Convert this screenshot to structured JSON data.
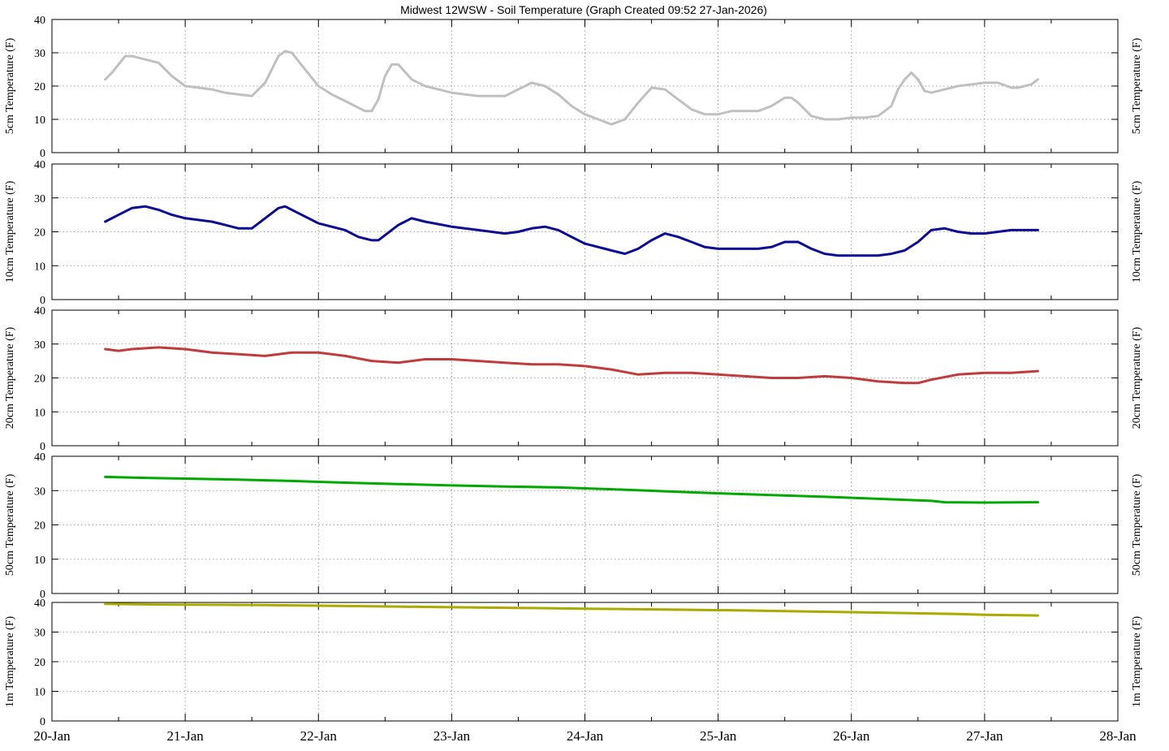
{
  "title": "Midwest 12WSW - Soil Temperature (Graph Created 09:52 27-Jan-2026)",
  "chart_data": [
    {
      "type": "line",
      "ylabel": "5cm Temperature (F)",
      "ylim": [
        0,
        40
      ],
      "yticks": [
        "0",
        "10",
        "20",
        "30",
        "40"
      ],
      "grid": true,
      "series": [
        {
          "color": "#c0c0c0",
          "x": [
            20.4,
            20.45,
            20.55,
            20.6,
            20.7,
            20.8,
            20.9,
            21.0,
            21.1,
            21.2,
            21.3,
            21.4,
            21.5,
            21.6,
            21.7,
            21.75,
            21.8,
            21.9,
            22.0,
            22.1,
            22.2,
            22.3,
            22.35,
            22.4,
            22.45,
            22.5,
            22.55,
            22.6,
            22.7,
            22.8,
            22.9,
            23.0,
            23.2,
            23.4,
            23.5,
            23.6,
            23.7,
            23.8,
            23.9,
            24.0,
            24.1,
            24.2,
            24.3,
            24.4,
            24.5,
            24.6,
            24.7,
            24.8,
            24.9,
            25.0,
            25.1,
            25.2,
            25.3,
            25.4,
            25.5,
            25.55,
            25.6,
            25.7,
            25.8,
            25.9,
            26.0,
            26.1,
            26.2,
            26.3,
            26.35,
            26.4,
            26.45,
            26.5,
            26.55,
            26.6,
            26.65,
            26.7,
            26.75,
            26.8,
            26.9,
            27.0,
            27.1,
            27.2,
            27.25,
            27.3,
            27.35,
            27.4
          ],
          "values": [
            22,
            24,
            29,
            29,
            28,
            27,
            23,
            20,
            19.5,
            19,
            18,
            17.5,
            17,
            21,
            29,
            30.5,
            30,
            25,
            20,
            17.5,
            15.5,
            13.5,
            12.5,
            12.5,
            16,
            23,
            26.5,
            26.5,
            22,
            20,
            19,
            18,
            17,
            17,
            19,
            21,
            20,
            17.5,
            14,
            11.5,
            10,
            8.5,
            10,
            15,
            19.5,
            19,
            16,
            13,
            11.5,
            11.5,
            12.5,
            12.5,
            12.5,
            14,
            16.5,
            16.5,
            15,
            11,
            10,
            10,
            10.5,
            10.5,
            11,
            14,
            19,
            22,
            24,
            22,
            18.5,
            18,
            18.5,
            19,
            19.5,
            20,
            20.5,
            21,
            21,
            19.5,
            19.5,
            20,
            20.5,
            22
          ]
        }
      ]
    },
    {
      "type": "line",
      "ylabel": "10cm Temperature (F)",
      "ylim": [
        0,
        40
      ],
      "yticks": [
        "0",
        "10",
        "20",
        "30",
        "40"
      ],
      "grid": true,
      "series": [
        {
          "color": "#0a0a96",
          "x": [
            20.4,
            20.5,
            20.6,
            20.7,
            20.8,
            20.9,
            21.0,
            21.2,
            21.3,
            21.4,
            21.5,
            21.6,
            21.7,
            21.75,
            21.8,
            21.9,
            22.0,
            22.2,
            22.3,
            22.4,
            22.45,
            22.5,
            22.6,
            22.7,
            22.8,
            23.0,
            23.2,
            23.4,
            23.5,
            23.6,
            23.7,
            23.8,
            23.9,
            24.0,
            24.2,
            24.3,
            24.4,
            24.5,
            24.6,
            24.7,
            24.8,
            24.9,
            25.0,
            25.2,
            25.3,
            25.4,
            25.5,
            25.6,
            25.7,
            25.8,
            25.9,
            26.0,
            26.2,
            26.3,
            26.4,
            26.5,
            26.6,
            26.7,
            26.8,
            26.9,
            27.0,
            27.2,
            27.3,
            27.4
          ],
          "values": [
            23,
            25,
            27,
            27.5,
            26.5,
            25,
            24,
            23,
            22,
            21,
            21,
            24,
            27,
            27.5,
            26.5,
            24.5,
            22.5,
            20.5,
            18.5,
            17.5,
            17.5,
            19,
            22,
            24,
            23,
            21.5,
            20.5,
            19.5,
            20,
            21,
            21.5,
            20.5,
            18.5,
            16.5,
            14.5,
            13.5,
            15,
            17.5,
            19.5,
            18.5,
            17,
            15.5,
            15,
            15,
            15,
            15.5,
            17,
            17,
            15,
            13.5,
            13,
            13,
            13,
            13.5,
            14.5,
            17,
            20.5,
            21,
            20,
            19.5,
            19.5,
            20.5,
            20.5,
            20.5
          ]
        }
      ]
    },
    {
      "type": "line",
      "ylabel": "20cm Temperature (F)",
      "ylim": [
        0,
        40
      ],
      "yticks": [
        "0",
        "10",
        "20",
        "30",
        "40"
      ],
      "grid": true,
      "series": [
        {
          "color": "#c03c3c",
          "x": [
            20.4,
            20.5,
            20.6,
            20.8,
            21.0,
            21.2,
            21.4,
            21.6,
            21.8,
            22.0,
            22.2,
            22.4,
            22.6,
            22.8,
            23.0,
            23.2,
            23.4,
            23.6,
            23.8,
            24.0,
            24.2,
            24.4,
            24.6,
            24.8,
            25.0,
            25.2,
            25.4,
            25.6,
            25.8,
            26.0,
            26.2,
            26.4,
            26.5,
            26.6,
            26.8,
            27.0,
            27.2,
            27.4
          ],
          "values": [
            28.5,
            28,
            28.5,
            29,
            28.5,
            27.5,
            27,
            26.5,
            27.5,
            27.5,
            26.5,
            25,
            24.5,
            25.5,
            25.5,
            25,
            24.5,
            24,
            24,
            23.5,
            22.5,
            21,
            21.5,
            21.5,
            21,
            20.5,
            20,
            20,
            20.5,
            20,
            19,
            18.5,
            18.5,
            19.5,
            21,
            21.5,
            21.5,
            22
          ]
        }
      ]
    },
    {
      "type": "line",
      "ylabel": "50cm Temperature (F)",
      "ylim": [
        0,
        40
      ],
      "yticks": [
        "0",
        "10",
        "20",
        "30",
        "40"
      ],
      "grid": true,
      "series": [
        {
          "color": "#00aa00",
          "x": [
            20.4,
            20.7,
            21.0,
            21.4,
            21.8,
            22.2,
            22.6,
            23.0,
            23.4,
            23.8,
            24.2,
            24.6,
            25.0,
            25.4,
            25.8,
            26.2,
            26.6,
            26.7,
            27.0,
            27.4
          ],
          "values": [
            34,
            33.7,
            33.5,
            33.2,
            32.8,
            32.3,
            31.9,
            31.5,
            31.2,
            30.9,
            30.4,
            29.8,
            29.2,
            28.7,
            28.2,
            27.6,
            27.0,
            26.6,
            26.5,
            26.6
          ]
        }
      ]
    },
    {
      "type": "line",
      "ylabel": "1m Temperature (F)",
      "ylim": [
        0,
        40
      ],
      "yticks": [
        "0",
        "10",
        "20",
        "30",
        "40"
      ],
      "xlim": [
        20,
        28
      ],
      "xticks": [
        "20-Jan",
        "21-Jan",
        "22-Jan",
        "23-Jan",
        "24-Jan",
        "25-Jan",
        "26-Jan",
        "27-Jan",
        "28-Jan"
      ],
      "grid": true,
      "series": [
        {
          "color": "#aaaa00",
          "x": [
            20.4,
            20.8,
            21.2,
            21.6,
            22.0,
            22.4,
            22.8,
            23.2,
            23.6,
            24.0,
            24.4,
            24.8,
            25.2,
            25.6,
            26.0,
            26.4,
            26.8,
            27.0,
            27.4
          ],
          "values": [
            39.5,
            39.3,
            39.2,
            39.1,
            38.9,
            38.7,
            38.5,
            38.3,
            38.1,
            37.9,
            37.7,
            37.5,
            37.3,
            37.0,
            36.7,
            36.4,
            36.1,
            35.8,
            35.6
          ]
        }
      ]
    }
  ]
}
